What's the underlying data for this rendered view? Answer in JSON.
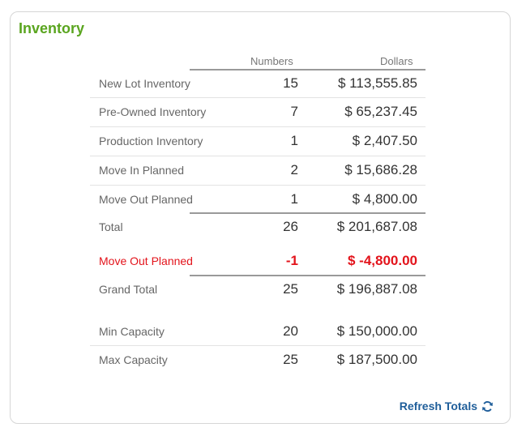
{
  "panel": {
    "title": "Inventory"
  },
  "columns": {
    "numbers": "Numbers",
    "dollars": "Dollars"
  },
  "rows": [
    {
      "label": "New Lot Inventory",
      "numbers": "15",
      "dollars": "$ 113,555.85"
    },
    {
      "label": "Pre-Owned Inventory",
      "numbers": "7",
      "dollars": "$ 65,237.45"
    },
    {
      "label": "Production Inventory",
      "numbers": "1",
      "dollars": "$ 2,407.50"
    },
    {
      "label": "Move In Planned",
      "numbers": "2",
      "dollars": "$ 15,686.28"
    },
    {
      "label": "Move Out Planned",
      "numbers": "1",
      "dollars": "$ 4,800.00"
    }
  ],
  "total": {
    "label": "Total",
    "numbers": "26",
    "dollars": "$ 201,687.08"
  },
  "move_out_adjustment": {
    "label": "Move Out Planned",
    "numbers": "-1",
    "dollars": "$ -4,800.00",
    "color": "#e3131b"
  },
  "grand_total": {
    "label": "Grand Total",
    "numbers": "25",
    "dollars": "$ 196,887.08"
  },
  "capacity": [
    {
      "label": "Min Capacity",
      "numbers": "20",
      "dollars": "$ 150,000.00"
    },
    {
      "label": "Max Capacity",
      "numbers": "25",
      "dollars": "$ 187,500.00"
    }
  ],
  "refresh": {
    "label": "Refresh Totals",
    "icon": "refresh-icon"
  },
  "colors": {
    "title": "#5aa51f",
    "link": "#1f5e9a",
    "negative": "#e3131b"
  }
}
